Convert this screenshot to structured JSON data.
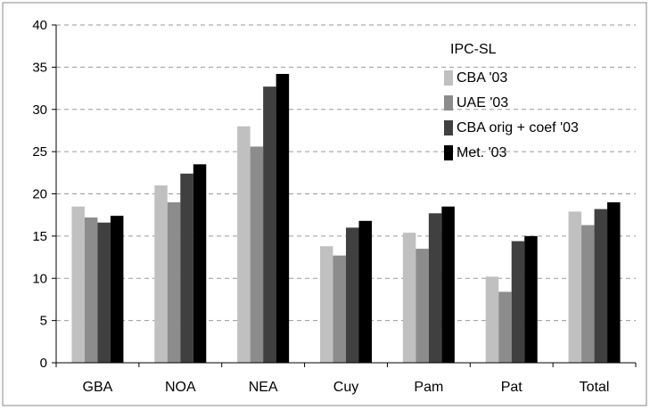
{
  "chart_data": {
    "type": "bar",
    "title": "",
    "xlabel": "",
    "ylabel": "",
    "ylim": [
      0,
      40
    ],
    "yticks": [
      0,
      5,
      10,
      15,
      20,
      25,
      30,
      35,
      40
    ],
    "grid": "horizontal-dashed",
    "legend_title": "IPC-SL",
    "legend_position": "top-right",
    "categories": [
      "GBA",
      "NOA",
      "NEA",
      "Cuy",
      "Pam",
      "Pat",
      "Total"
    ],
    "series": [
      {
        "name": "CBA '03",
        "color": "#c0c0c0",
        "values": [
          18.5,
          21.0,
          28.0,
          13.8,
          15.4,
          10.2,
          17.9
        ]
      },
      {
        "name": "UAE '03",
        "color": "#8c8c8c",
        "values": [
          17.2,
          19.0,
          25.6,
          12.7,
          13.5,
          8.4,
          16.3
        ]
      },
      {
        "name": "CBA orig + coef '03",
        "color": "#404040",
        "values": [
          16.6,
          22.4,
          32.7,
          16.0,
          17.7,
          14.4,
          18.2
        ]
      },
      {
        "name": "Met. '03",
        "color": "#000000",
        "values": [
          17.4,
          23.5,
          34.2,
          16.8,
          18.5,
          15.0,
          19.0
        ]
      }
    ]
  }
}
